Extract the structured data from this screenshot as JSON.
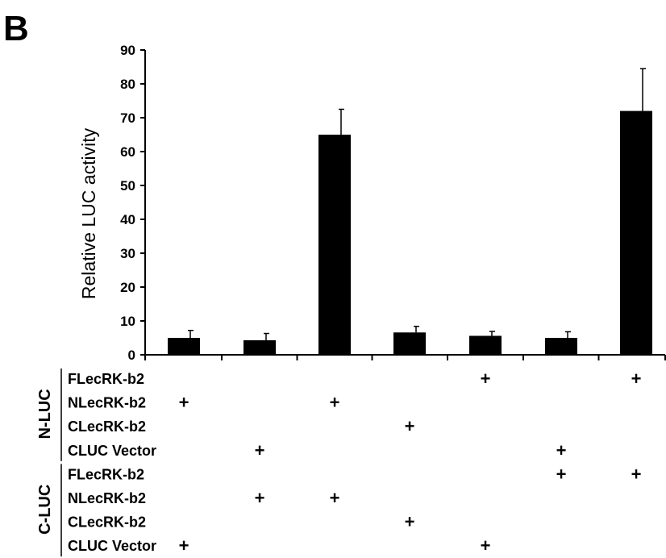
{
  "panel_label": "B",
  "chart_data": {
    "type": "bar",
    "ylabel": "Relative LUC activity",
    "xlabel": "",
    "ylim": [
      0,
      90
    ],
    "yticks": [
      0,
      10,
      20,
      30,
      40,
      50,
      60,
      70,
      80,
      90
    ],
    "bar_color": "#000000",
    "values": [
      5.0,
      4.3,
      65.0,
      6.6,
      5.6,
      5.0,
      72.0
    ],
    "errors": [
      2.2,
      2.0,
      7.5,
      1.8,
      1.3,
      1.8,
      12.5
    ]
  },
  "design_table": {
    "groups": [
      {
        "name": "N-LUC",
        "rows": [
          {
            "label": "FLecRK-b2",
            "marks": [
              0,
              0,
              0,
              0,
              1,
              0,
              1
            ]
          },
          {
            "label": "NLecRK-b2",
            "marks": [
              1,
              0,
              1,
              0,
              0,
              0,
              0
            ]
          },
          {
            "label": "CLecRK-b2",
            "marks": [
              0,
              0,
              0,
              1,
              0,
              0,
              0
            ]
          },
          {
            "label": "CLUC Vector",
            "marks": [
              0,
              1,
              0,
              0,
              0,
              1,
              0
            ]
          }
        ]
      },
      {
        "name": "C-LUC",
        "rows": [
          {
            "label": "FLecRK-b2",
            "marks": [
              0,
              0,
              0,
              0,
              0,
              1,
              1
            ]
          },
          {
            "label": "NLecRK-b2",
            "marks": [
              0,
              1,
              1,
              0,
              0,
              0,
              0
            ]
          },
          {
            "label": "CLecRK-b2",
            "marks": [
              0,
              0,
              0,
              1,
              0,
              0,
              0
            ]
          },
          {
            "label": "CLUC Vector",
            "marks": [
              1,
              0,
              0,
              0,
              1,
              0,
              0
            ]
          }
        ]
      }
    ],
    "mark_symbol": "+"
  }
}
